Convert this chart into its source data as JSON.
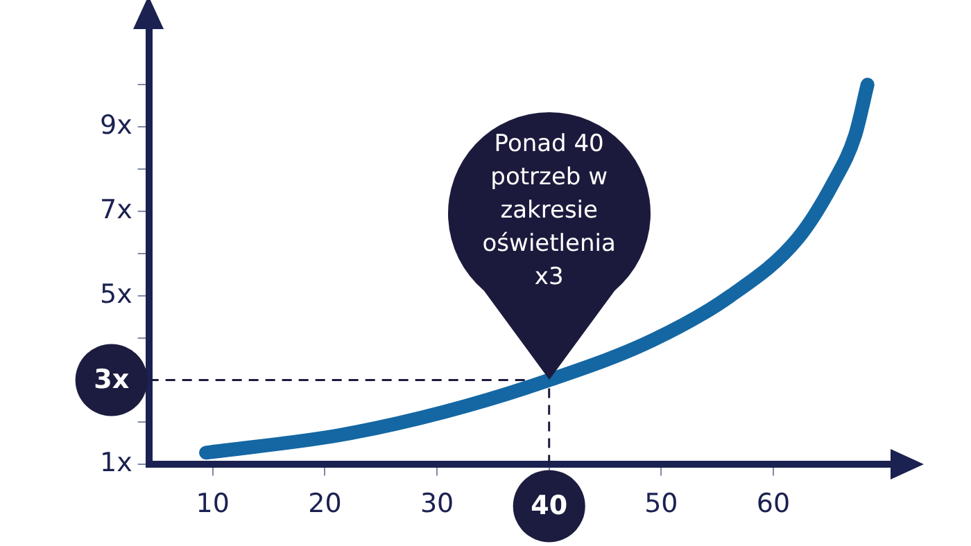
{
  "chart_data": {
    "type": "line",
    "series": [
      {
        "color": "#1467a3",
        "x": [
          9.4,
          21.4,
          30.7,
          40,
          49.2,
          56.2,
          62.2,
          65.4,
          67.3,
          68.4
        ],
        "values": [
          1.28,
          1.7,
          2.25,
          3,
          3.94,
          5.0,
          6.36,
          7.7,
          8.8,
          10.0
        ]
      }
    ],
    "xlim": [
      4.3,
      71.2
    ],
    "xticks": [
      10,
      20,
      30,
      40,
      50,
      60
    ],
    "ylim": [
      1,
      11.5
    ],
    "yticks": [
      {
        "value": 1,
        "label": "1x"
      },
      {
        "value": 2,
        "label": null
      },
      {
        "value": 3,
        "label": "3x"
      },
      {
        "value": 4,
        "label": null
      },
      {
        "value": 5,
        "label": "5x"
      },
      {
        "value": 6,
        "label": null
      },
      {
        "value": 7,
        "label": "7x"
      },
      {
        "value": 8,
        "label": null
      },
      {
        "value": 9,
        "label": "9x"
      },
      {
        "value": 10,
        "label": null
      }
    ],
    "ref_lines": [
      {
        "axis": "x",
        "value": 40,
        "line_style": "dashed",
        "color": "#1b1c3f"
      },
      {
        "axis": "y",
        "value": 3,
        "line_style": "dashed",
        "color": "#1b1c3f"
      }
    ],
    "annotations": [
      "Ponad 40 potrzeb w zakresie oświetlenia x3"
    ],
    "grid": false,
    "legend": false,
    "marker": "none",
    "line_style": "solid"
  }
}
